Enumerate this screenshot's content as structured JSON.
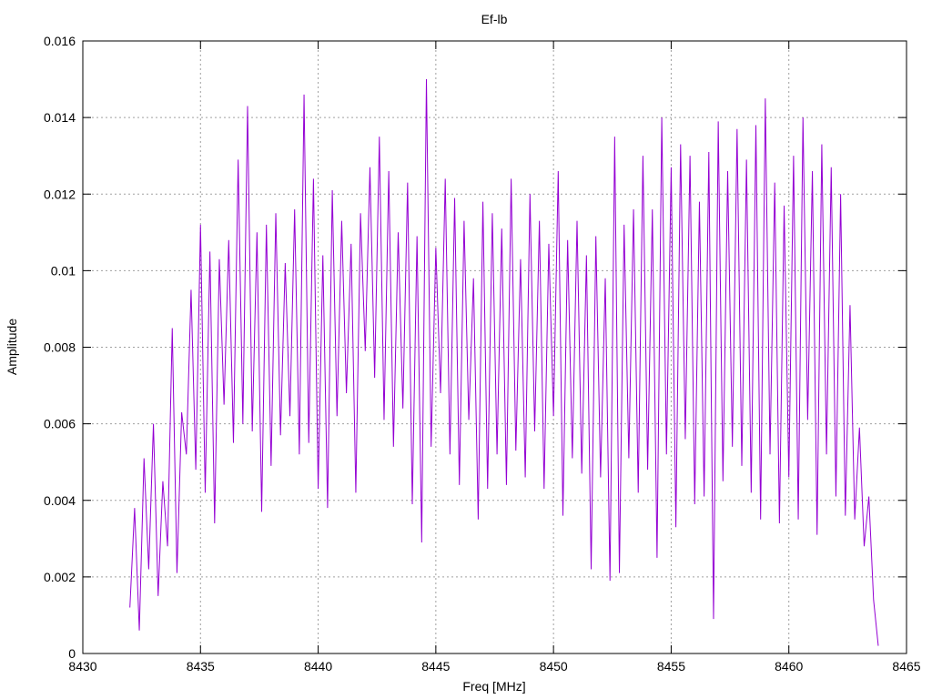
{
  "chart_data": {
    "type": "line",
    "title": "Ef-lb",
    "x_label": "Freq [MHz]",
    "y_label": "Amplitude",
    "xlim": [
      8430,
      8465
    ],
    "xticks": [
      8430,
      8435,
      8440,
      8445,
      8450,
      8455,
      8460,
      8465
    ],
    "ylim": [
      0,
      0.016
    ],
    "yticks": [
      0,
      0.002,
      0.004,
      0.006,
      0.008,
      0.01,
      0.012,
      0.014,
      0.016
    ],
    "grid": true,
    "x": [
      8432.0,
      8432.2,
      8432.4,
      8432.6,
      8432.8,
      8433.0,
      8433.2,
      8433.4,
      8433.6,
      8433.8,
      8434.0,
      8434.2,
      8434.4,
      8434.6,
      8434.8,
      8435.0,
      8435.2,
      8435.4,
      8435.6,
      8435.8,
      8436.0,
      8436.2,
      8436.4,
      8436.6,
      8436.8,
      8437.0,
      8437.2,
      8437.4,
      8437.6,
      8437.8,
      8438.0,
      8438.2,
      8438.4,
      8438.6,
      8438.8,
      8439.0,
      8439.2,
      8439.4,
      8439.6,
      8439.8,
      8440.0,
      8440.2,
      8440.4,
      8440.6,
      8440.8,
      8441.0,
      8441.2,
      8441.4,
      8441.6,
      8441.8,
      8442.0,
      8442.2,
      8442.4,
      8442.6,
      8442.8,
      8443.0,
      8443.2,
      8443.4,
      8443.6,
      8443.8,
      8444.0,
      8444.2,
      8444.4,
      8444.6,
      8444.8,
      8445.0,
      8445.2,
      8445.4,
      8445.6,
      8445.8,
      8446.0,
      8446.2,
      8446.4,
      8446.6,
      8446.8,
      8447.0,
      8447.2,
      8447.4,
      8447.6,
      8447.8,
      8448.0,
      8448.2,
      8448.4,
      8448.6,
      8448.8,
      8449.0,
      8449.2,
      8449.4,
      8449.6,
      8449.8,
      8450.0,
      8450.2,
      8450.4,
      8450.6,
      8450.8,
      8451.0,
      8451.2,
      8451.4,
      8451.6,
      8451.8,
      8452.0,
      8452.2,
      8452.4,
      8452.6,
      8452.8,
      8453.0,
      8453.2,
      8453.4,
      8453.6,
      8453.8,
      8454.0,
      8454.2,
      8454.4,
      8454.6,
      8454.8,
      8455.0,
      8455.2,
      8455.4,
      8455.6,
      8455.8,
      8456.0,
      8456.2,
      8456.4,
      8456.6,
      8456.8,
      8457.0,
      8457.2,
      8457.4,
      8457.6,
      8457.8,
      8458.0,
      8458.2,
      8458.4,
      8458.6,
      8458.8,
      8459.0,
      8459.2,
      8459.4,
      8459.6,
      8459.8,
      8460.0,
      8460.2,
      8460.4,
      8460.6,
      8460.8,
      8461.0,
      8461.2,
      8461.4,
      8461.6,
      8461.8,
      8462.0,
      8462.2,
      8462.4,
      8462.6,
      8462.8,
      8463.0,
      8463.2,
      8463.4,
      8463.6,
      8463.8
    ],
    "series": [
      {
        "color": "#9400d3",
        "values": [
          0.0012,
          0.0038,
          0.0006,
          0.0051,
          0.0022,
          0.006,
          0.0015,
          0.0045,
          0.0028,
          0.0085,
          0.0021,
          0.0063,
          0.0052,
          0.0095,
          0.0048,
          0.0112,
          0.0042,
          0.0105,
          0.0034,
          0.0103,
          0.0065,
          0.0108,
          0.0055,
          0.0129,
          0.006,
          0.0143,
          0.0058,
          0.011,
          0.0037,
          0.0112,
          0.0049,
          0.0115,
          0.0057,
          0.0102,
          0.0062,
          0.0116,
          0.0052,
          0.0146,
          0.0055,
          0.0124,
          0.0043,
          0.0104,
          0.0038,
          0.0121,
          0.0062,
          0.0113,
          0.0068,
          0.0107,
          0.0042,
          0.0115,
          0.0079,
          0.0127,
          0.0072,
          0.0135,
          0.0061,
          0.0126,
          0.0054,
          0.011,
          0.0064,
          0.0123,
          0.0039,
          0.0109,
          0.0029,
          0.015,
          0.0054,
          0.0106,
          0.0068,
          0.0124,
          0.0052,
          0.0119,
          0.0044,
          0.0113,
          0.0061,
          0.0098,
          0.0035,
          0.0118,
          0.0043,
          0.0115,
          0.0052,
          0.0111,
          0.0044,
          0.0124,
          0.0053,
          0.0103,
          0.0046,
          0.012,
          0.0058,
          0.0113,
          0.0043,
          0.0107,
          0.0062,
          0.0126,
          0.0036,
          0.0108,
          0.0051,
          0.0113,
          0.0047,
          0.0104,
          0.0022,
          0.0109,
          0.0046,
          0.0098,
          0.0019,
          0.0135,
          0.0021,
          0.0112,
          0.0051,
          0.0116,
          0.0042,
          0.013,
          0.0048,
          0.0116,
          0.0025,
          0.014,
          0.0052,
          0.0127,
          0.0033,
          0.0133,
          0.0056,
          0.013,
          0.0039,
          0.0118,
          0.0041,
          0.0131,
          0.0009,
          0.0139,
          0.0045,
          0.0126,
          0.0054,
          0.0137,
          0.0049,
          0.0129,
          0.0042,
          0.0138,
          0.0035,
          0.0145,
          0.0052,
          0.0123,
          0.0034,
          0.0117,
          0.0046,
          0.013,
          0.0035,
          0.014,
          0.0061,
          0.0126,
          0.0031,
          0.0133,
          0.0052,
          0.0127,
          0.0041,
          0.012,
          0.0036,
          0.0091,
          0.0035,
          0.0059,
          0.0028,
          0.0041,
          0.0014,
          0.0002
        ]
      }
    ]
  }
}
